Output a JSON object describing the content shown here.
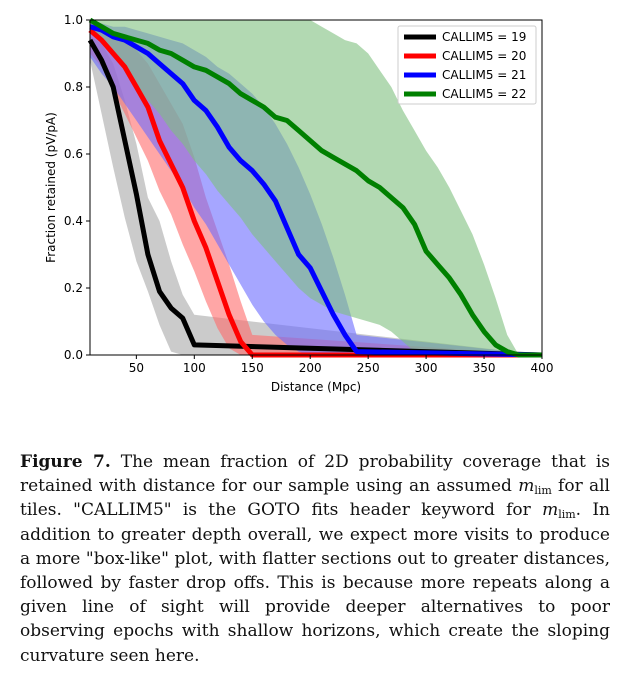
{
  "chart_data": {
    "type": "area",
    "xlabel": "Distance (Mpc)",
    "ylabel": "Fraction retained (pV/pA)",
    "xlim": [
      10,
      400
    ],
    "ylim": [
      0.0,
      1.0
    ],
    "xticks": [
      50,
      100,
      150,
      200,
      250,
      300,
      350,
      400
    ],
    "yticks": [
      0.0,
      0.2,
      0.4,
      0.6,
      0.8,
      1.0
    ],
    "xtick_labels": [
      "50",
      "100",
      "150",
      "200",
      "250",
      "300",
      "350",
      "400"
    ],
    "ytick_labels": [
      "0.0",
      "0.2",
      "0.4",
      "0.6",
      "0.8",
      "1.0"
    ],
    "grid": false,
    "legend_position": "top-right",
    "series": [
      {
        "name": "CALLIM5 = 19",
        "color": "#000000",
        "band_color": "#a9a9a9",
        "x": [
          10,
          20,
          30,
          40,
          50,
          60,
          70,
          80,
          90,
          100,
          400
        ],
        "y": [
          0.94,
          0.88,
          0.8,
          0.64,
          0.48,
          0.3,
          0.19,
          0.14,
          0.11,
          0.03,
          0.0
        ],
        "upper": [
          0.95,
          0.93,
          0.87,
          0.76,
          0.63,
          0.47,
          0.4,
          0.28,
          0.18,
          0.12,
          0.0
        ],
        "lower": [
          0.88,
          0.72,
          0.56,
          0.41,
          0.28,
          0.19,
          0.09,
          0.01,
          0.0,
          0.0,
          0.0
        ]
      },
      {
        "name": "CALLIM5 = 20",
        "color": "#ff0000",
        "band_color": "#ff6a6a",
        "x": [
          10,
          20,
          30,
          40,
          50,
          60,
          70,
          80,
          90,
          100,
          110,
          120,
          130,
          140,
          150,
          400
        ],
        "y": [
          0.97,
          0.94,
          0.9,
          0.86,
          0.8,
          0.74,
          0.64,
          0.57,
          0.5,
          0.4,
          0.32,
          0.22,
          0.12,
          0.04,
          0.0,
          0.0
        ],
        "upper": [
          0.99,
          0.98,
          0.96,
          0.94,
          0.91,
          0.87,
          0.81,
          0.75,
          0.69,
          0.59,
          0.47,
          0.37,
          0.27,
          0.16,
          0.06,
          0.0
        ],
        "lower": [
          0.9,
          0.86,
          0.79,
          0.72,
          0.65,
          0.58,
          0.49,
          0.42,
          0.33,
          0.25,
          0.16,
          0.08,
          0.02,
          0.0,
          0.0,
          0.0
        ]
      },
      {
        "name": "CALLIM5 = 21",
        "color": "#0000ff",
        "band_color": "#6a6aff",
        "x": [
          10,
          20,
          30,
          40,
          50,
          60,
          70,
          80,
          90,
          100,
          110,
          120,
          130,
          140,
          150,
          160,
          170,
          180,
          190,
          200,
          210,
          220,
          230,
          240,
          400
        ],
        "y": [
          0.98,
          0.97,
          0.95,
          0.94,
          0.92,
          0.9,
          0.87,
          0.84,
          0.81,
          0.76,
          0.73,
          0.68,
          0.62,
          0.58,
          0.55,
          0.51,
          0.46,
          0.38,
          0.3,
          0.26,
          0.19,
          0.12,
          0.06,
          0.01,
          0.0
        ],
        "upper": [
          0.99,
          0.99,
          0.98,
          0.98,
          0.97,
          0.96,
          0.95,
          0.94,
          0.93,
          0.91,
          0.89,
          0.86,
          0.84,
          0.81,
          0.78,
          0.74,
          0.69,
          0.63,
          0.56,
          0.48,
          0.39,
          0.29,
          0.18,
          0.06,
          0.0
        ],
        "lower": [
          0.89,
          0.84,
          0.8,
          0.75,
          0.7,
          0.65,
          0.6,
          0.55,
          0.5,
          0.44,
          0.39,
          0.33,
          0.27,
          0.21,
          0.15,
          0.1,
          0.06,
          0.03,
          0.01,
          0.0,
          0.0,
          0.0,
          0.0,
          0.0,
          0.0
        ]
      },
      {
        "name": "CALLIM5 = 22",
        "color": "#008000",
        "band_color": "#7fc07f",
        "x": [
          10,
          20,
          30,
          40,
          50,
          60,
          70,
          80,
          90,
          100,
          110,
          120,
          130,
          140,
          150,
          160,
          170,
          180,
          190,
          200,
          210,
          220,
          230,
          240,
          250,
          260,
          270,
          280,
          290,
          300,
          310,
          320,
          330,
          340,
          350,
          360,
          370,
          380,
          390,
          400
        ],
        "y": [
          1.0,
          0.98,
          0.96,
          0.95,
          0.94,
          0.93,
          0.91,
          0.9,
          0.88,
          0.86,
          0.85,
          0.83,
          0.81,
          0.78,
          0.76,
          0.74,
          0.71,
          0.7,
          0.67,
          0.64,
          0.61,
          0.59,
          0.57,
          0.55,
          0.52,
          0.5,
          0.47,
          0.44,
          0.39,
          0.31,
          0.27,
          0.23,
          0.18,
          0.12,
          0.07,
          0.03,
          0.01,
          0.0,
          0.0,
          0.0
        ],
        "upper": [
          1.0,
          1.0,
          1.0,
          1.0,
          1.0,
          1.0,
          1.0,
          1.0,
          1.0,
          1.0,
          1.0,
          1.0,
          1.0,
          1.0,
          1.0,
          1.0,
          1.0,
          1.0,
          1.0,
          1.0,
          0.98,
          0.96,
          0.94,
          0.93,
          0.9,
          0.85,
          0.8,
          0.73,
          0.67,
          0.61,
          0.56,
          0.5,
          0.43,
          0.36,
          0.27,
          0.17,
          0.06,
          0.0,
          0.0,
          0.0
        ],
        "lower": [
          0.97,
          0.93,
          0.89,
          0.85,
          0.8,
          0.76,
          0.72,
          0.67,
          0.63,
          0.58,
          0.54,
          0.49,
          0.45,
          0.41,
          0.36,
          0.32,
          0.28,
          0.24,
          0.2,
          0.17,
          0.15,
          0.13,
          0.12,
          0.11,
          0.1,
          0.09,
          0.07,
          0.04,
          0.01,
          0.0,
          0.0,
          0.0,
          0.0,
          0.0,
          0.0,
          0.0,
          0.0,
          0.0,
          0.0,
          0.0
        ]
      }
    ]
  },
  "caption": {
    "label": "Figure 7.",
    "t1": " The mean fraction of 2D probability coverage that is retained with distance for our sample using an assumed ",
    "m1": "m",
    "s1": "lim",
    "t2": " for all tiles. \"CALLIM5\" is the GOTO fits header keyword for ",
    "m2": "m",
    "s2": "lim",
    "t3": ". In addition to greater depth overall, we expect more visits to produce a more \"box-like\" plot, with flatter sections out to greater distances, followed by faster drop offs. This is because more repeats along a given line of sight will provide deeper alternatives to poor observing epochs with shallow horizons, which create the sloping curvature seen here."
  }
}
